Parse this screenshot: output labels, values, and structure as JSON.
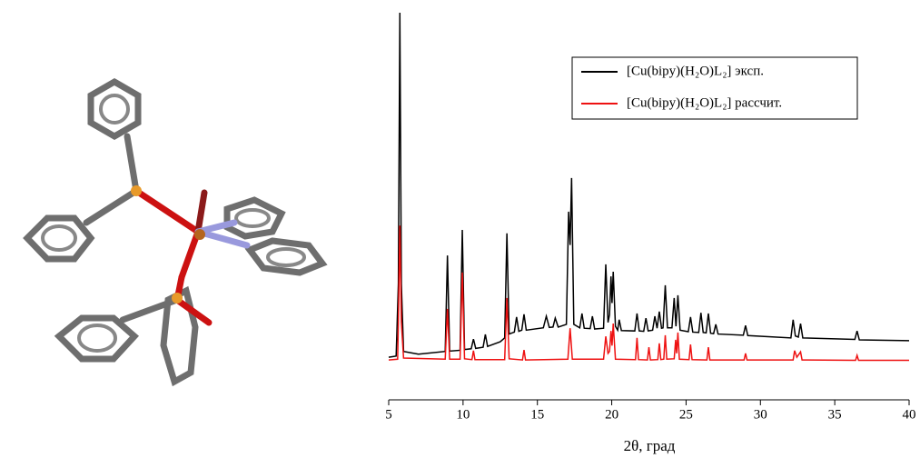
{
  "chart_data": {
    "type": "line",
    "x_label": "2θ, град",
    "xlim": [
      5,
      40
    ],
    "xticks": [
      5,
      10,
      15,
      20,
      25,
      30,
      35,
      40
    ],
    "ylim": [
      0,
      100
    ],
    "legend": "upper right",
    "series": [
      {
        "name": "[Cu(bipy)(H₂O)L₂] эксп.",
        "color": "#000000",
        "x": [
          5.0,
          5.5,
          5.65,
          5.75,
          5.85,
          6.0,
          7,
          8.8,
          8.95,
          9.1,
          9.8,
          9.95,
          10.1,
          10.55,
          10.7,
          10.85,
          11.35,
          11.5,
          11.65,
          12.5,
          12.8,
          12.95,
          13.1,
          13.45,
          13.6,
          13.75,
          13.95,
          14.1,
          14.25,
          15.4,
          15.6,
          15.8,
          16.05,
          16.2,
          16.4,
          16.95,
          17.1,
          17.2,
          17.3,
          17.45,
          17.85,
          18.0,
          18.15,
          18.55,
          18.7,
          18.85,
          19.45,
          19.6,
          19.75,
          19.85,
          19.95,
          20.02,
          20.1,
          20.25,
          20.4,
          20.5,
          20.65,
          21.55,
          21.7,
          21.85,
          22.15,
          22.3,
          22.45,
          22.75,
          22.9,
          23.05,
          23.2,
          23.35,
          23.45,
          23.6,
          23.75,
          24.05,
          24.2,
          24.32,
          24.45,
          24.6,
          25.15,
          25.3,
          25.45,
          25.85,
          26.0,
          26.15,
          26.35,
          26.5,
          26.65,
          26.85,
          27.0,
          27.15,
          28.85,
          29.0,
          29.15,
          32.05,
          32.2,
          32.35,
          32.55,
          32.7,
          32.85,
          36.35,
          36.5,
          36.65,
          40
        ],
        "values": [
          11.0,
          11.3,
          30,
          100,
          30,
          12.5,
          11.8,
          12.5,
          37.3,
          12.6,
          12.8,
          43.9,
          13.0,
          13.2,
          15.7,
          13.3,
          13.6,
          16.9,
          13.8,
          15,
          16,
          43,
          17,
          17.5,
          21.4,
          17.7,
          18,
          22.1,
          18,
          18.6,
          21.6,
          18.7,
          18.8,
          21.1,
          18.8,
          19.5,
          48.6,
          40,
          57.3,
          19.5,
          18.6,
          22.3,
          18.5,
          18.4,
          21.6,
          18.3,
          18.5,
          35,
          20,
          22,
          31.9,
          25,
          33.1,
          19,
          18,
          20.7,
          17.9,
          17.8,
          22.3,
          17.8,
          17.7,
          21.1,
          17.8,
          18,
          21.6,
          18.5,
          22.8,
          18.5,
          18.6,
          29.6,
          18.6,
          18.6,
          26.3,
          19,
          27,
          18,
          17.6,
          21.4,
          17.5,
          17.4,
          22.5,
          17.4,
          17.3,
          22.3,
          17.2,
          17.1,
          19.5,
          17,
          16.7,
          19.2,
          16.6,
          16,
          20.7,
          16.5,
          16.2,
          19.7,
          16,
          15.6,
          17.8,
          15.5,
          15.3
        ]
      },
      {
        "name": "[Cu(bipy)(H₂O)L₂] рассчит.",
        "color": "#ee1111",
        "x": [
          5.0,
          5.6,
          5.65,
          5.75,
          5.85,
          6.0,
          8.8,
          8.95,
          9.1,
          9.8,
          9.95,
          10.1,
          10.6,
          10.7,
          10.8,
          12.8,
          12.95,
          13.1,
          14.0,
          14.1,
          14.2,
          17.05,
          17.2,
          17.35,
          19.45,
          19.6,
          19.75,
          19.85,
          19.95,
          20.02,
          20.1,
          20.25,
          21.6,
          21.7,
          21.8,
          22.4,
          22.5,
          22.6,
          23.1,
          23.2,
          23.3,
          23.5,
          23.6,
          23.7,
          24.2,
          24.3,
          24.37,
          24.45,
          24.55,
          25.2,
          25.3,
          25.4,
          26.4,
          26.5,
          26.6,
          28.9,
          29.0,
          29.1,
          32.2,
          32.3,
          32.45,
          32.7,
          32.8,
          36.4,
          36.5,
          36.6,
          40
        ],
        "values": [
          10.3,
          10.5,
          20,
          45,
          20,
          10.8,
          10.5,
          23.5,
          10.5,
          10.5,
          32.9,
          10.6,
          10.4,
          12.7,
          10.4,
          10.4,
          26.3,
          10.6,
          10.3,
          12.9,
          10.3,
          10.5,
          18.5,
          10.5,
          10.5,
          16.4,
          12,
          12.5,
          17.8,
          14,
          19.7,
          10.5,
          10.4,
          16,
          10.4,
          10.3,
          13.6,
          10.3,
          10.4,
          14.6,
          10.4,
          10.5,
          16.7,
          10.5,
          10.6,
          15.5,
          12,
          17.4,
          10.5,
          10.4,
          14.3,
          10.4,
          10.3,
          13.6,
          10.3,
          10.3,
          12,
          10.3,
          10.3,
          12.7,
          11,
          12.4,
          10.3,
          10.2,
          11.5,
          10.2,
          10.2
        ]
      }
    ]
  }
}
